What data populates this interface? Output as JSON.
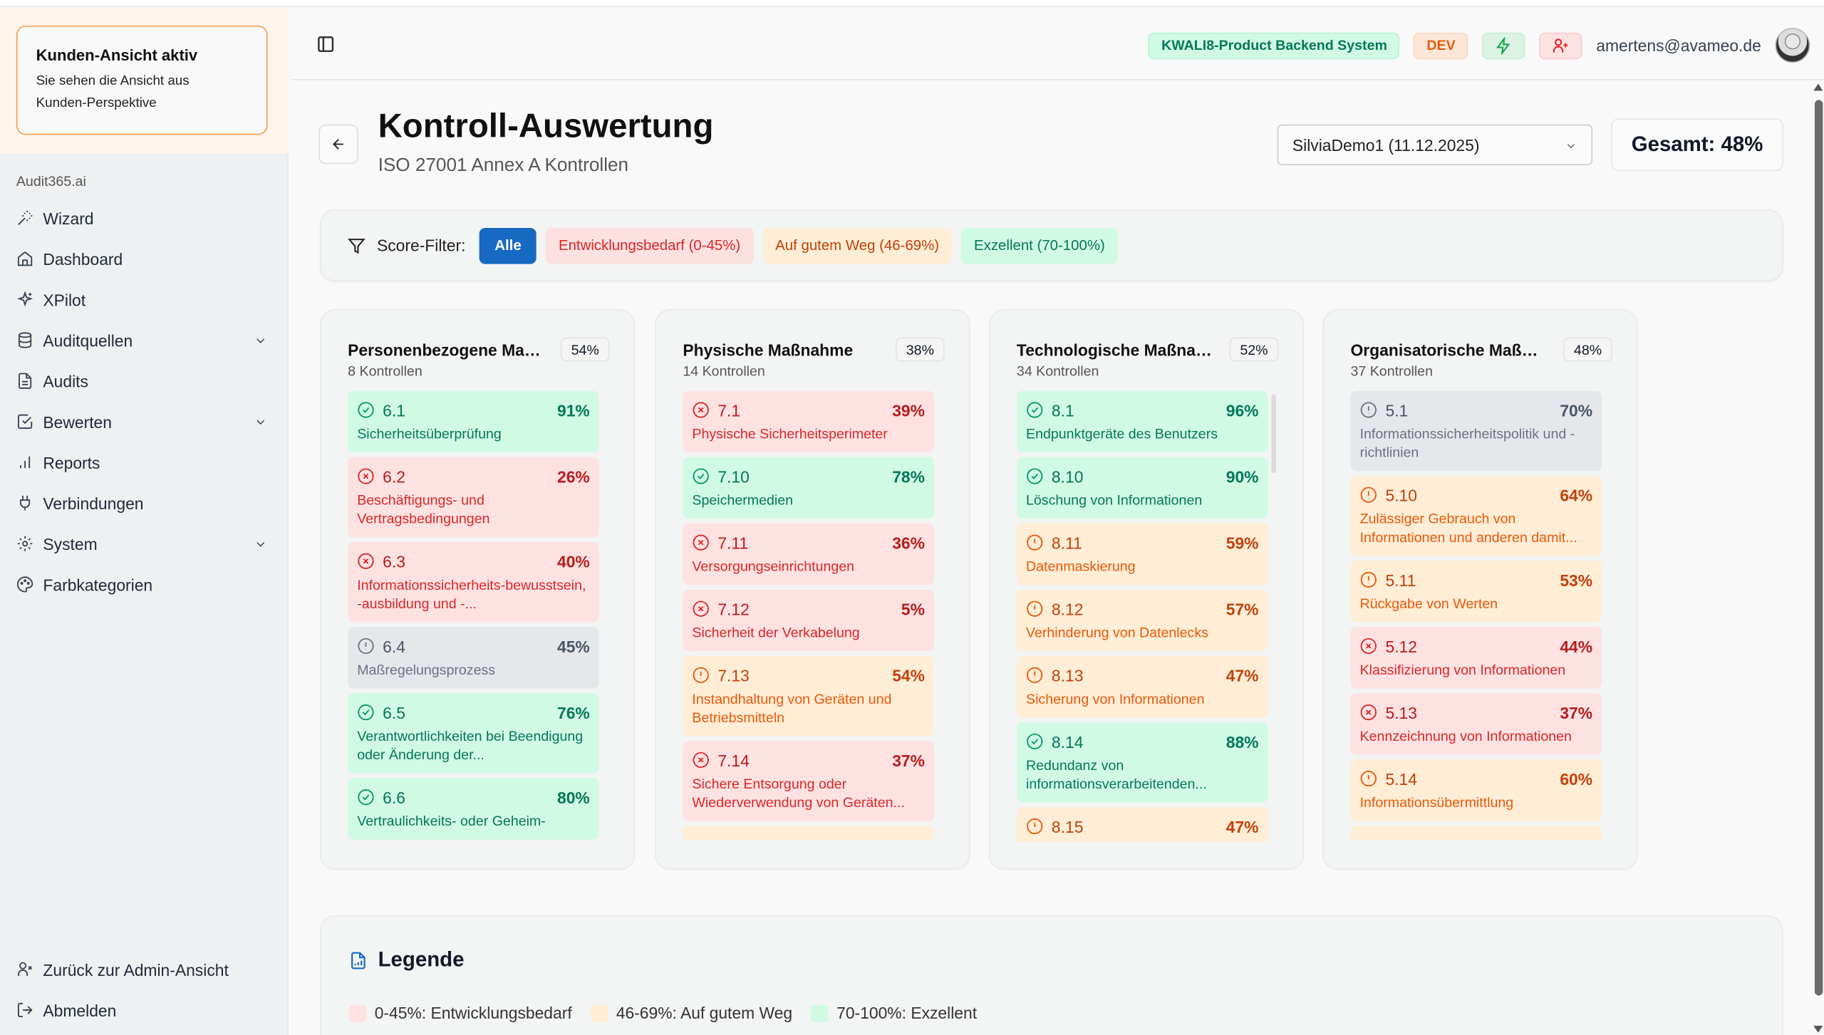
{
  "sidebar": {
    "banner": {
      "title": "Kunden-Ansicht aktiv",
      "line1": "Sie sehen die Ansicht aus",
      "line2": "Kunden-Perspektive"
    },
    "brand": "Audit365.ai",
    "items": [
      {
        "label": "Wizard",
        "icon": "wand-icon",
        "expandable": false
      },
      {
        "label": "Dashboard",
        "icon": "home-icon",
        "expandable": false
      },
      {
        "label": "XPilot",
        "icon": "sparkles-icon",
        "expandable": false
      },
      {
        "label": "Auditquellen",
        "icon": "database-icon",
        "expandable": true
      },
      {
        "label": "Audits",
        "icon": "file-text-icon",
        "expandable": false
      },
      {
        "label": "Bewerten",
        "icon": "check-square-icon",
        "expandable": true
      },
      {
        "label": "Reports",
        "icon": "bar-chart-icon",
        "expandable": false
      },
      {
        "label": "Verbindungen",
        "icon": "plug-icon",
        "expandable": false
      },
      {
        "label": "System",
        "icon": "gear-icon",
        "expandable": true
      },
      {
        "label": "Farbkategorien",
        "icon": "palette-icon",
        "expandable": false
      }
    ],
    "bottom": [
      {
        "label": "Zurück zur Admin-Ansicht",
        "icon": "user-x-icon"
      },
      {
        "label": "Abmelden",
        "icon": "logout-icon"
      }
    ]
  },
  "header": {
    "system_badge": "KWALI8-Product Backend System",
    "env_badge": "DEV",
    "user_email": "amertens@avameo.de"
  },
  "page": {
    "title": "Kontroll-Auswertung",
    "subtitle": "ISO 27001 Annex A Kontrollen",
    "audit_select": "SilviaDemo1 (11.12.2025)",
    "total": "Gesamt: 48%"
  },
  "filter": {
    "label": "Score-Filter:",
    "options": [
      "Alle",
      "Entwicklungsbedarf (0-45%)",
      "Auf gutem Weg (46-69%)",
      "Exzellent (70-100%)"
    ],
    "active": "Alle"
  },
  "colors": {
    "green": "#d1fae5",
    "red": "#fee2e2",
    "orange": "#ffedd5",
    "gray": "#e5e7eb",
    "primary": "#1769c3"
  },
  "categories": [
    {
      "title": "Personenbezogene Maß...",
      "score": "54%",
      "count": "8 Kontrollen",
      "more_below": false,
      "items": [
        {
          "code": "6.1",
          "score": "91%",
          "name": "Sicherheitsüberprüfung",
          "status": "green"
        },
        {
          "code": "6.2",
          "score": "26%",
          "name": "Beschäftigungs- und Vertragsbedingungen",
          "status": "red"
        },
        {
          "code": "6.3",
          "score": "40%",
          "name": "Informationssicherheits-bewusstsein, -ausbildung und -...",
          "status": "red"
        },
        {
          "code": "6.4",
          "score": "45%",
          "name": "Maßregelungsprozess",
          "status": "gray"
        },
        {
          "code": "6.5",
          "score": "76%",
          "name": "Verantwortlichkeiten bei Beendigung oder Änderung der...",
          "status": "green"
        },
        {
          "code": "6.6",
          "score": "80%",
          "name": "Vertraulichkeits- oder Geheim-",
          "status": "green"
        }
      ]
    },
    {
      "title": "Physische Maßnahme",
      "score": "38%",
      "count": "14 Kontrollen",
      "more_below": true,
      "items": [
        {
          "code": "7.1",
          "score": "39%",
          "name": "Physische Sicherheitsperimeter",
          "status": "red"
        },
        {
          "code": "7.10",
          "score": "78%",
          "name": "Speichermedien",
          "status": "green"
        },
        {
          "code": "7.11",
          "score": "36%",
          "name": "Versorgungseinrichtungen",
          "status": "red"
        },
        {
          "code": "7.12",
          "score": "5%",
          "name": "Sicherheit der Verkabelung",
          "status": "red"
        },
        {
          "code": "7.13",
          "score": "54%",
          "name": "Instandhaltung von Geräten und Betriebsmitteln",
          "status": "orange"
        },
        {
          "code": "7.14",
          "score": "37%",
          "name": "Sichere Entsorgung oder Wiederverwendung von Geräten...",
          "status": "red"
        }
      ]
    },
    {
      "title": "Technologische Maßnah...",
      "score": "52%",
      "count": "34 Kontrollen",
      "more_below": false,
      "items": [
        {
          "code": "8.1",
          "score": "96%",
          "name": "Endpunktgeräte des Benutzers",
          "status": "green"
        },
        {
          "code": "8.10",
          "score": "90%",
          "name": "Löschung von Informationen",
          "status": "green"
        },
        {
          "code": "8.11",
          "score": "59%",
          "name": "Datenmaskierung",
          "status": "orange"
        },
        {
          "code": "8.12",
          "score": "57%",
          "name": "Verhinderung von Datenlecks",
          "status": "orange"
        },
        {
          "code": "8.13",
          "score": "47%",
          "name": "Sicherung von Informationen",
          "status": "orange"
        },
        {
          "code": "8.14",
          "score": "88%",
          "name": "Redundanz von informationsverarbeitenden...",
          "status": "green"
        },
        {
          "code": "8.15",
          "score": "47%",
          "name": "",
          "status": "orange"
        }
      ]
    },
    {
      "title": "Organisatorische Maßna...",
      "score": "48%",
      "count": "37 Kontrollen",
      "more_below": true,
      "items": [
        {
          "code": "5.1",
          "score": "70%",
          "name": "Informationssicherheitspolitik und -richtlinien",
          "status": "gray"
        },
        {
          "code": "5.10",
          "score": "64%",
          "name": "Zulässiger Gebrauch von Informationen und anderen damit...",
          "status": "orange"
        },
        {
          "code": "5.11",
          "score": "53%",
          "name": "Rückgabe von Werten",
          "status": "orange"
        },
        {
          "code": "5.12",
          "score": "44%",
          "name": "Klassifizierung von Informationen",
          "status": "red"
        },
        {
          "code": "5.13",
          "score": "37%",
          "name": "Kennzeichnung von Informationen",
          "status": "red"
        },
        {
          "code": "5.14",
          "score": "60%",
          "name": "Informationsübermittlung",
          "status": "orange"
        }
      ]
    }
  ],
  "legend": {
    "title": "Legende",
    "items": [
      {
        "label": "0-45%: Entwicklungsbedarf",
        "color": "#fee2e2"
      },
      {
        "label": "46-69%: Auf gutem Weg",
        "color": "#ffedd5"
      },
      {
        "label": "70-100%: Exzellent",
        "color": "#d1fae5"
      }
    ]
  }
}
